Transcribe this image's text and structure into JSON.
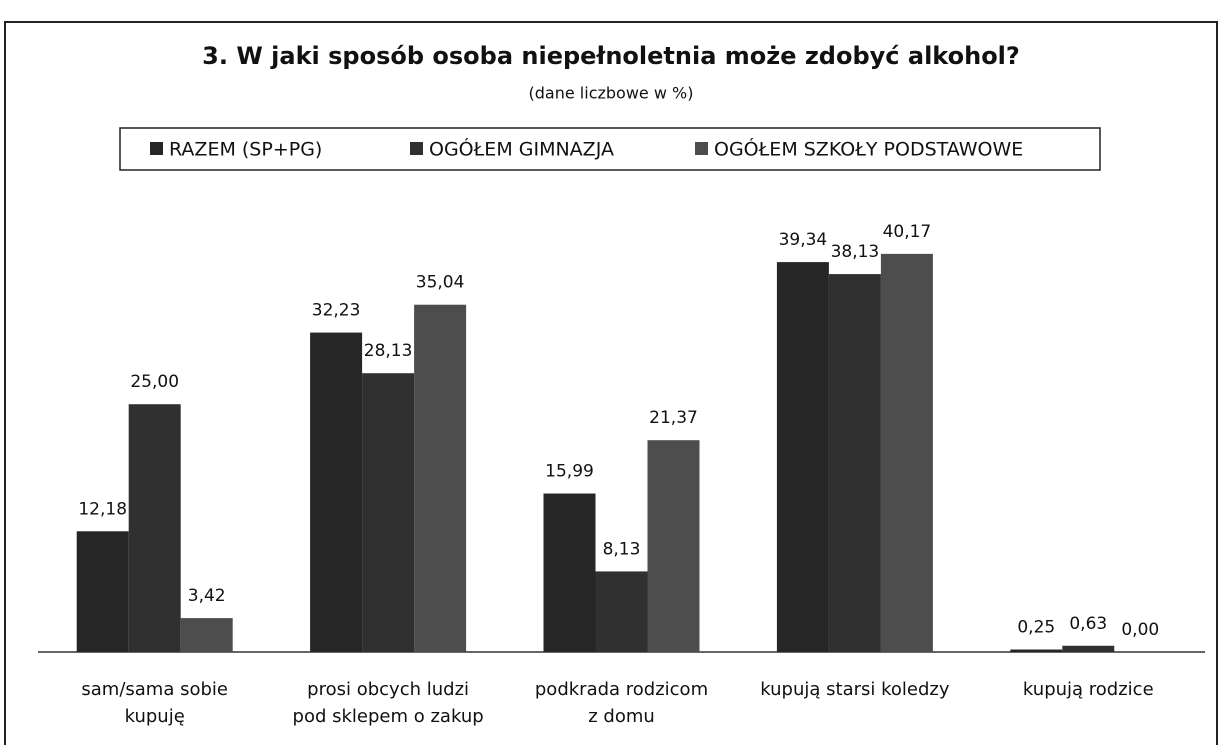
{
  "chart_data": {
    "type": "bar",
    "title": "3. W jaki sposób osoba niepełnoletnia może zdobyć alkohol?",
    "subtitle": "(dane liczbowe w %)",
    "categories": [
      [
        "sam/sama sobie",
        "kupuję"
      ],
      [
        "prosi obcych ludzi",
        "pod sklepem o zakup"
      ],
      [
        "podkrada rodzicom",
        "z domu"
      ],
      [
        "kupują starsi koledzy"
      ],
      [
        "kupują rodzice"
      ]
    ],
    "series": [
      {
        "name": "RAZEM (SP+PG)",
        "color": "#262626",
        "values": [
          12.18,
          32.23,
          15.99,
          39.34,
          0.25
        ],
        "value_labels": [
          "12,18",
          "32,23",
          "15,99",
          "39,34",
          "0,25"
        ]
      },
      {
        "name": "OGÓŁEM GIMNAZJA",
        "color": "#303030",
        "values": [
          25.0,
          28.13,
          8.13,
          38.13,
          0.63
        ],
        "value_labels": [
          "25,00",
          "28,13",
          "8,13",
          "38,13",
          "0,63"
        ]
      },
      {
        "name": "OGÓŁEM SZKOŁY PODSTAWOWE",
        "color": "#4d4d4d",
        "values": [
          3.42,
          35.04,
          21.37,
          40.17,
          0.0
        ],
        "value_labels": [
          "3,42",
          "35,04",
          "21,37",
          "40,17",
          "0,00"
        ]
      }
    ],
    "ylim": [
      0,
      45
    ],
    "legend": "top"
  }
}
